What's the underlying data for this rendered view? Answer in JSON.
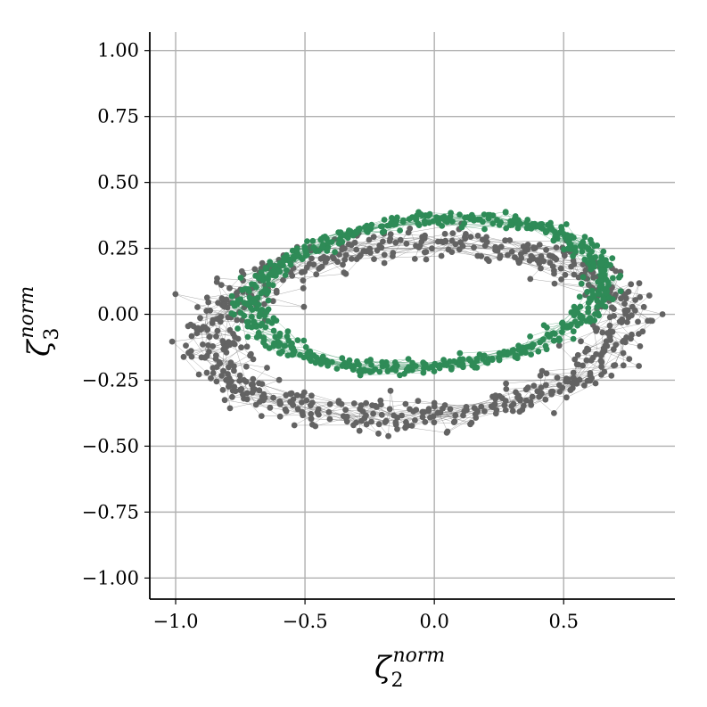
{
  "chart_data": {
    "type": "scatter",
    "title": "",
    "xlabel": {
      "base": "ζ",
      "sub": "2",
      "sup": "norm"
    },
    "ylabel": {
      "base": "ζ",
      "sub": "3",
      "sup": "norm"
    },
    "xlim": [
      -1.1,
      0.93
    ],
    "ylim": [
      -1.08,
      1.07
    ],
    "x_ticks": [
      -1.0,
      -0.5,
      0.0,
      0.5
    ],
    "x_tick_labels": [
      "−1.0",
      "−0.5",
      "0.0",
      "0.5"
    ],
    "y_ticks": [
      1.0,
      0.75,
      0.5,
      0.25,
      0.0,
      -0.25,
      -0.5,
      -0.75,
      -1.0
    ],
    "y_tick_labels": [
      "1.00",
      "0.75",
      "0.50",
      "0.25",
      "0.00",
      "−0.25",
      "−0.50",
      "−0.75",
      "−1.00"
    ],
    "grid": true,
    "series": [
      {
        "color": "#636363",
        "connected": true,
        "marker": "circle",
        "ring": {
          "cx": -0.07,
          "cy": -0.06,
          "rx_mean": 0.79,
          "ry_mean": 0.33,
          "thickness": 0.09,
          "tilt_deg": 3
        },
        "points_count": 700
      },
      {
        "color": "#2e8b57",
        "connected": true,
        "marker": "circle",
        "ring": {
          "cx": -0.02,
          "cy": 0.08,
          "rx_mean": 0.68,
          "ry_mean": 0.28,
          "thickness": 0.05,
          "tilt_deg": 5
        },
        "points_count": 650
      }
    ],
    "colors": {
      "axis": "#000000",
      "grid": "#b0b0b0",
      "gray_series": "#636363",
      "green_series": "#2e8b57"
    }
  }
}
